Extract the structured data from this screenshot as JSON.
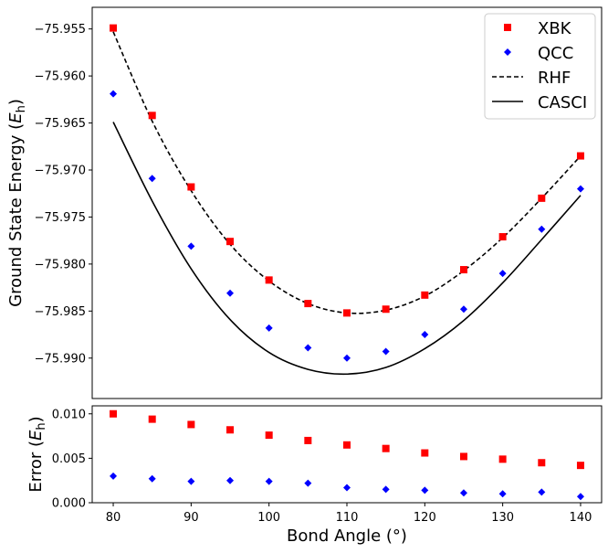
{
  "chart_data": [
    {
      "type": "line",
      "x": [
        80,
        85,
        90,
        95,
        100,
        105,
        110,
        115,
        120,
        125,
        130,
        135,
        140
      ],
      "series": [
        {
          "name": "XBK",
          "style": "square-marker",
          "color": "#ff0000",
          "values": [
            -75.9549,
            -75.9642,
            -75.9718,
            -75.9776,
            -75.9817,
            -75.9842,
            -75.9852,
            -75.9848,
            -75.9833,
            -75.9806,
            -75.9771,
            -75.973,
            -75.9685
          ]
        },
        {
          "name": "QCC",
          "style": "diamond-marker",
          "color": "#0000ff",
          "values": [
            -75.9619,
            -75.9709,
            -75.9781,
            -75.9831,
            -75.9868,
            -75.9889,
            -75.99,
            -75.9893,
            -75.9875,
            -75.9848,
            -75.981,
            -75.9763,
            -75.972
          ]
        },
        {
          "name": "RHF",
          "style": "dashed-line",
          "color": "#000000",
          "values": [
            -75.9553,
            -75.9648,
            -75.9722,
            -75.9779,
            -75.9818,
            -75.9842,
            -75.9852,
            -75.9849,
            -75.9834,
            -75.9807,
            -75.9772,
            -75.973,
            -75.9685
          ]
        },
        {
          "name": "CASCI",
          "style": "solid-line",
          "color": "#000000",
          "values": [
            -75.9649,
            -75.9733,
            -75.9805,
            -75.9859,
            -75.9894,
            -75.9912,
            -75.9917,
            -75.991,
            -75.989,
            -75.986,
            -75.982,
            -75.9774,
            -75.9727
          ]
        }
      ],
      "ylabel": "Ground State Energy ($E_\\mathrm{h}$)",
      "ylabel_main": "Ground State Energy (",
      "ylabel_sym": "E",
      "ylabel_sub": "h",
      "ylabel_close": ")",
      "ylim": [
        -75.9943,
        -75.9527
      ],
      "yticks": [
        -75.955,
        -75.96,
        -75.965,
        -75.97,
        -75.975,
        -75.98,
        -75.985,
        -75.99
      ],
      "ytick_labels": [
        "−75.955",
        "−75.960",
        "−75.965",
        "−75.970",
        "−75.975",
        "−75.980",
        "−75.985",
        "−75.990"
      ],
      "xlim": [
        77.3,
        142.7
      ],
      "legend": "top-right",
      "grid": false
    },
    {
      "type": "scatter",
      "x": [
        80,
        85,
        90,
        95,
        100,
        105,
        110,
        115,
        120,
        125,
        130,
        135,
        140
      ],
      "series": [
        {
          "name": "XBK",
          "style": "square-marker",
          "color": "#ff0000",
          "values": [
            0.01,
            0.0094,
            0.0088,
            0.0082,
            0.0076,
            0.007,
            0.0065,
            0.0061,
            0.0056,
            0.0052,
            0.0049,
            0.0045,
            0.0042
          ]
        },
        {
          "name": "QCC",
          "style": "diamond-marker",
          "color": "#0000ff",
          "values": [
            0.003,
            0.0027,
            0.0024,
            0.0025,
            0.0024,
            0.0022,
            0.0017,
            0.0015,
            0.0014,
            0.0011,
            0.001,
            0.0012,
            0.0007
          ]
        }
      ],
      "ylabel": "Error ($E_\\mathrm{h}$)",
      "ylabel_main": "Error (",
      "ylabel_sym": "E",
      "ylabel_sub": "h",
      "ylabel_close": ")",
      "xlabel": "Bond Angle (°)",
      "ylim": [
        0.0,
        0.0109
      ],
      "yticks": [
        0.0,
        0.005,
        0.01
      ],
      "ytick_labels": [
        "0.000",
        "0.005",
        "0.010"
      ],
      "xlim": [
        77.3,
        142.7
      ],
      "xticks": [
        80,
        90,
        100,
        110,
        120,
        130,
        140
      ],
      "xtick_labels": [
        "80",
        "90",
        "100",
        "110",
        "120",
        "130",
        "140"
      ],
      "grid": false
    }
  ]
}
